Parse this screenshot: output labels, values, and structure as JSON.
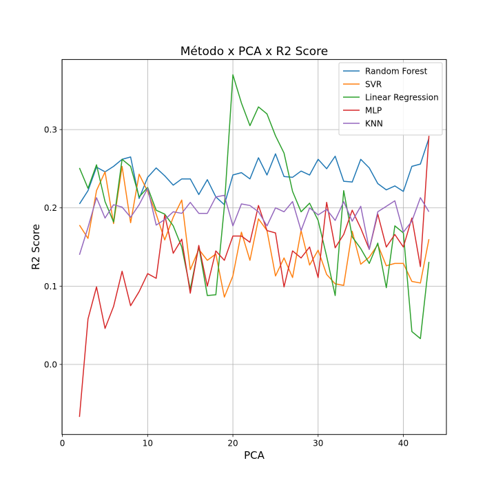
{
  "chart_data": {
    "type": "line",
    "title": "Método x PCA x R2 Score",
    "xlabel": "PCA",
    "ylabel": "R2 Score",
    "xlim": [
      -0.05,
      45.05
    ],
    "ylim": [
      -0.0895,
      0.3895
    ],
    "xticks": [
      0,
      10,
      20,
      30,
      40
    ],
    "yticks": [
      0.0,
      0.1,
      0.2,
      0.3
    ],
    "xtick_labels": [
      "0",
      "10",
      "20",
      "30",
      "40"
    ],
    "ytick_labels": [
      "0.0",
      "0.1",
      "0.2",
      "0.3"
    ],
    "grid": true,
    "legend_position": "top-right",
    "x": [
      2,
      3,
      4,
      5,
      6,
      7,
      8,
      9,
      10,
      11,
      12,
      13,
      14,
      15,
      16,
      17,
      18,
      19,
      20,
      21,
      22,
      23,
      24,
      25,
      26,
      27,
      28,
      29,
      30,
      31,
      32,
      33,
      34,
      35,
      36,
      37,
      38,
      39,
      40,
      41,
      42,
      43
    ],
    "series": [
      {
        "name": "Random Forest",
        "color": "#1f77b4",
        "values": [
          0.205,
          0.222,
          0.252,
          0.246,
          0.253,
          0.262,
          0.265,
          0.212,
          0.239,
          0.251,
          0.241,
          0.229,
          0.237,
          0.237,
          0.217,
          0.236,
          0.214,
          0.204,
          0.242,
          0.245,
          0.237,
          0.264,
          0.242,
          0.269,
          0.24,
          0.239,
          0.247,
          0.242,
          0.262,
          0.25,
          0.266,
          0.234,
          0.233,
          0.262,
          0.251,
          0.231,
          0.223,
          0.228,
          0.221,
          0.253,
          0.256,
          0.289
        ]
      },
      {
        "name": "SVR",
        "color": "#ff7f0e",
        "values": [
          0.178,
          0.161,
          0.222,
          0.246,
          0.18,
          0.253,
          0.181,
          0.243,
          0.221,
          0.192,
          0.159,
          0.188,
          0.21,
          0.121,
          0.147,
          0.133,
          0.141,
          0.086,
          0.113,
          0.169,
          0.133,
          0.186,
          0.171,
          0.113,
          0.136,
          0.111,
          0.171,
          0.127,
          0.146,
          0.115,
          0.103,
          0.101,
          0.17,
          0.128,
          0.137,
          0.153,
          0.126,
          0.129,
          0.129,
          0.106,
          0.104,
          0.16
        ]
      },
      {
        "name": "Linear Regression",
        "color": "#2ca02c",
        "values": [
          0.251,
          0.225,
          0.255,
          0.208,
          0.182,
          0.262,
          0.253,
          0.214,
          0.226,
          0.197,
          0.192,
          0.177,
          0.15,
          0.096,
          0.151,
          0.088,
          0.089,
          0.202,
          0.37,
          0.334,
          0.305,
          0.329,
          0.32,
          0.292,
          0.27,
          0.221,
          0.195,
          0.206,
          0.184,
          0.138,
          0.088,
          0.222,
          0.163,
          0.148,
          0.129,
          0.155,
          0.098,
          0.177,
          0.168,
          0.042,
          0.033,
          0.131
        ]
      },
      {
        "name": "MLP",
        "color": "#d62728",
        "values": [
          -0.067,
          0.058,
          0.099,
          0.046,
          0.074,
          0.119,
          0.075,
          0.093,
          0.116,
          0.11,
          0.191,
          0.142,
          0.16,
          0.091,
          0.152,
          0.1,
          0.145,
          0.133,
          0.164,
          0.164,
          0.156,
          0.203,
          0.171,
          0.168,
          0.099,
          0.145,
          0.136,
          0.15,
          0.111,
          0.207,
          0.149,
          0.166,
          0.197,
          0.174,
          0.147,
          0.192,
          0.15,
          0.166,
          0.15,
          0.187,
          0.125,
          0.292
        ]
      },
      {
        "name": "KNN",
        "color": "#9467bd",
        "values": [
          0.14,
          0.175,
          0.213,
          0.187,
          0.204,
          0.201,
          0.188,
          0.204,
          0.225,
          0.178,
          0.185,
          0.195,
          0.193,
          0.207,
          0.193,
          0.193,
          0.214,
          0.216,
          0.177,
          0.205,
          0.203,
          0.195,
          0.177,
          0.2,
          0.195,
          0.208,
          0.171,
          0.2,
          0.191,
          0.198,
          0.184,
          0.208,
          0.183,
          0.202,
          0.147,
          0.195,
          0.202,
          0.209,
          0.169,
          0.183,
          0.213,
          0.195
        ]
      }
    ]
  }
}
